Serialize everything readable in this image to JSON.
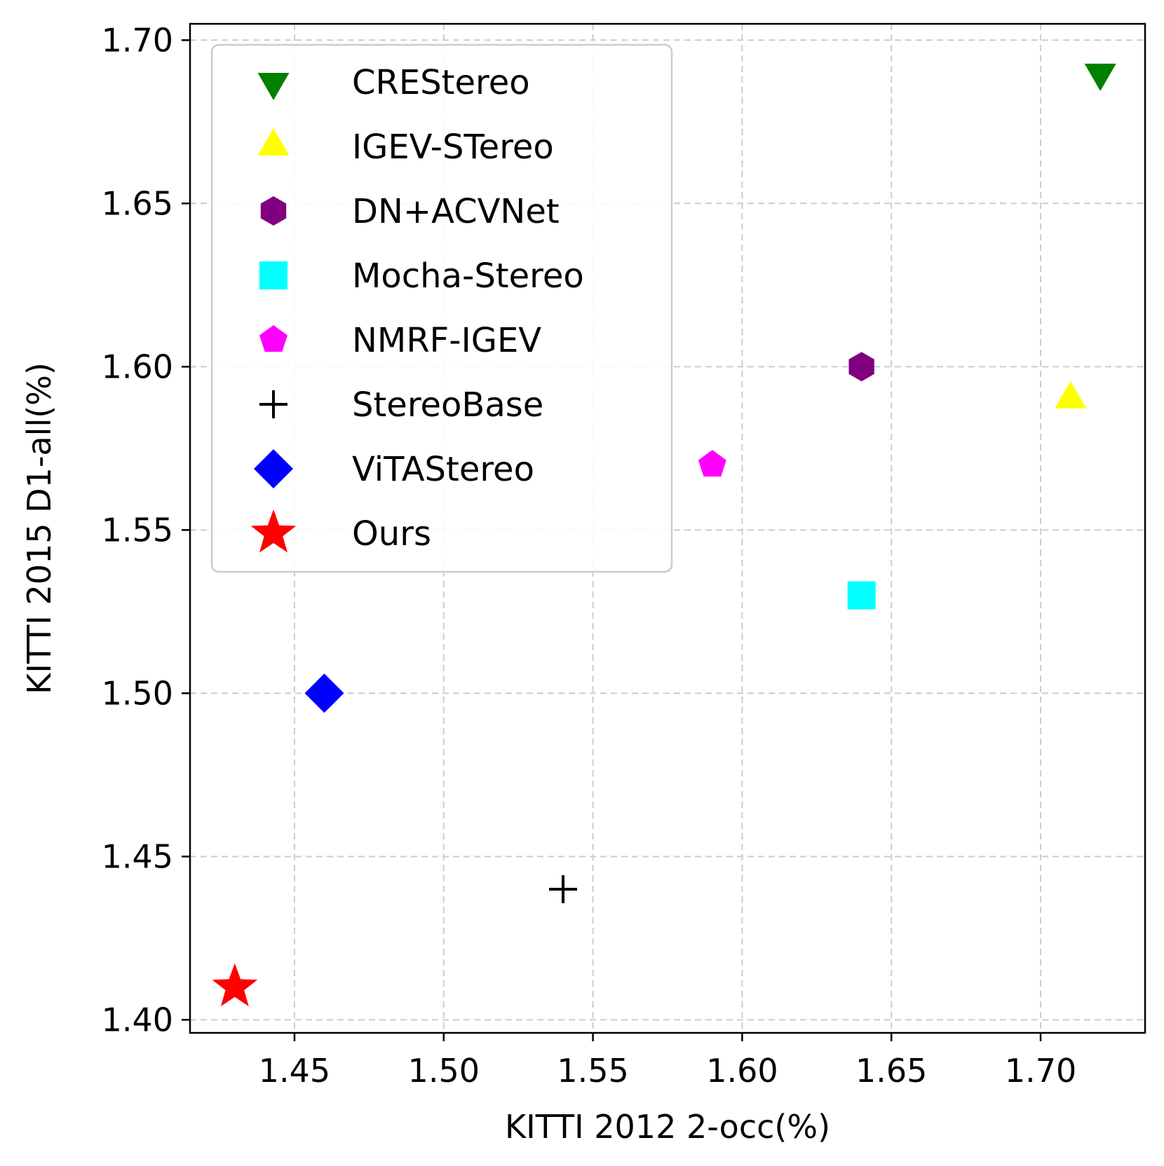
{
  "chart_data": {
    "type": "scatter",
    "title": "",
    "xlabel": "KITTI 2012 2-occ(%)",
    "ylabel": "KITTI 2015 D1-all(%)",
    "xlim": [
      1.415,
      1.735
    ],
    "ylim": [
      1.396,
      1.705
    ],
    "xticks": [
      "1.45",
      "1.50",
      "1.55",
      "1.60",
      "1.65",
      "1.70"
    ],
    "yticks": [
      "1.40",
      "1.45",
      "1.50",
      "1.55",
      "1.60",
      "1.65",
      "1.70"
    ],
    "grid": true,
    "legend_position": "top-left",
    "series": [
      {
        "name": "CREStereo",
        "x": 1.72,
        "y": 1.69,
        "marker": "triangle-down",
        "color": "#008000"
      },
      {
        "name": "IGEV-STereo",
        "x": 1.71,
        "y": 1.59,
        "marker": "triangle-up",
        "color": "#ffff00"
      },
      {
        "name": "DN+ACVNet",
        "x": 1.64,
        "y": 1.6,
        "marker": "hexagon",
        "color": "#800080"
      },
      {
        "name": "Mocha-Stereo",
        "x": 1.64,
        "y": 1.53,
        "marker": "square",
        "color": "#00ffff"
      },
      {
        "name": "NMRF-IGEV",
        "x": 1.59,
        "y": 1.57,
        "marker": "pentagon",
        "color": "#ff00ff"
      },
      {
        "name": "StereoBase",
        "x": 1.54,
        "y": 1.44,
        "marker": "plus",
        "color": "#000000"
      },
      {
        "name": "ViTAStereo",
        "x": 1.46,
        "y": 1.5,
        "marker": "diamond",
        "color": "#0000ff"
      },
      {
        "name": "Ours",
        "x": 1.43,
        "y": 1.41,
        "marker": "star",
        "color": "#ff0000"
      }
    ]
  }
}
